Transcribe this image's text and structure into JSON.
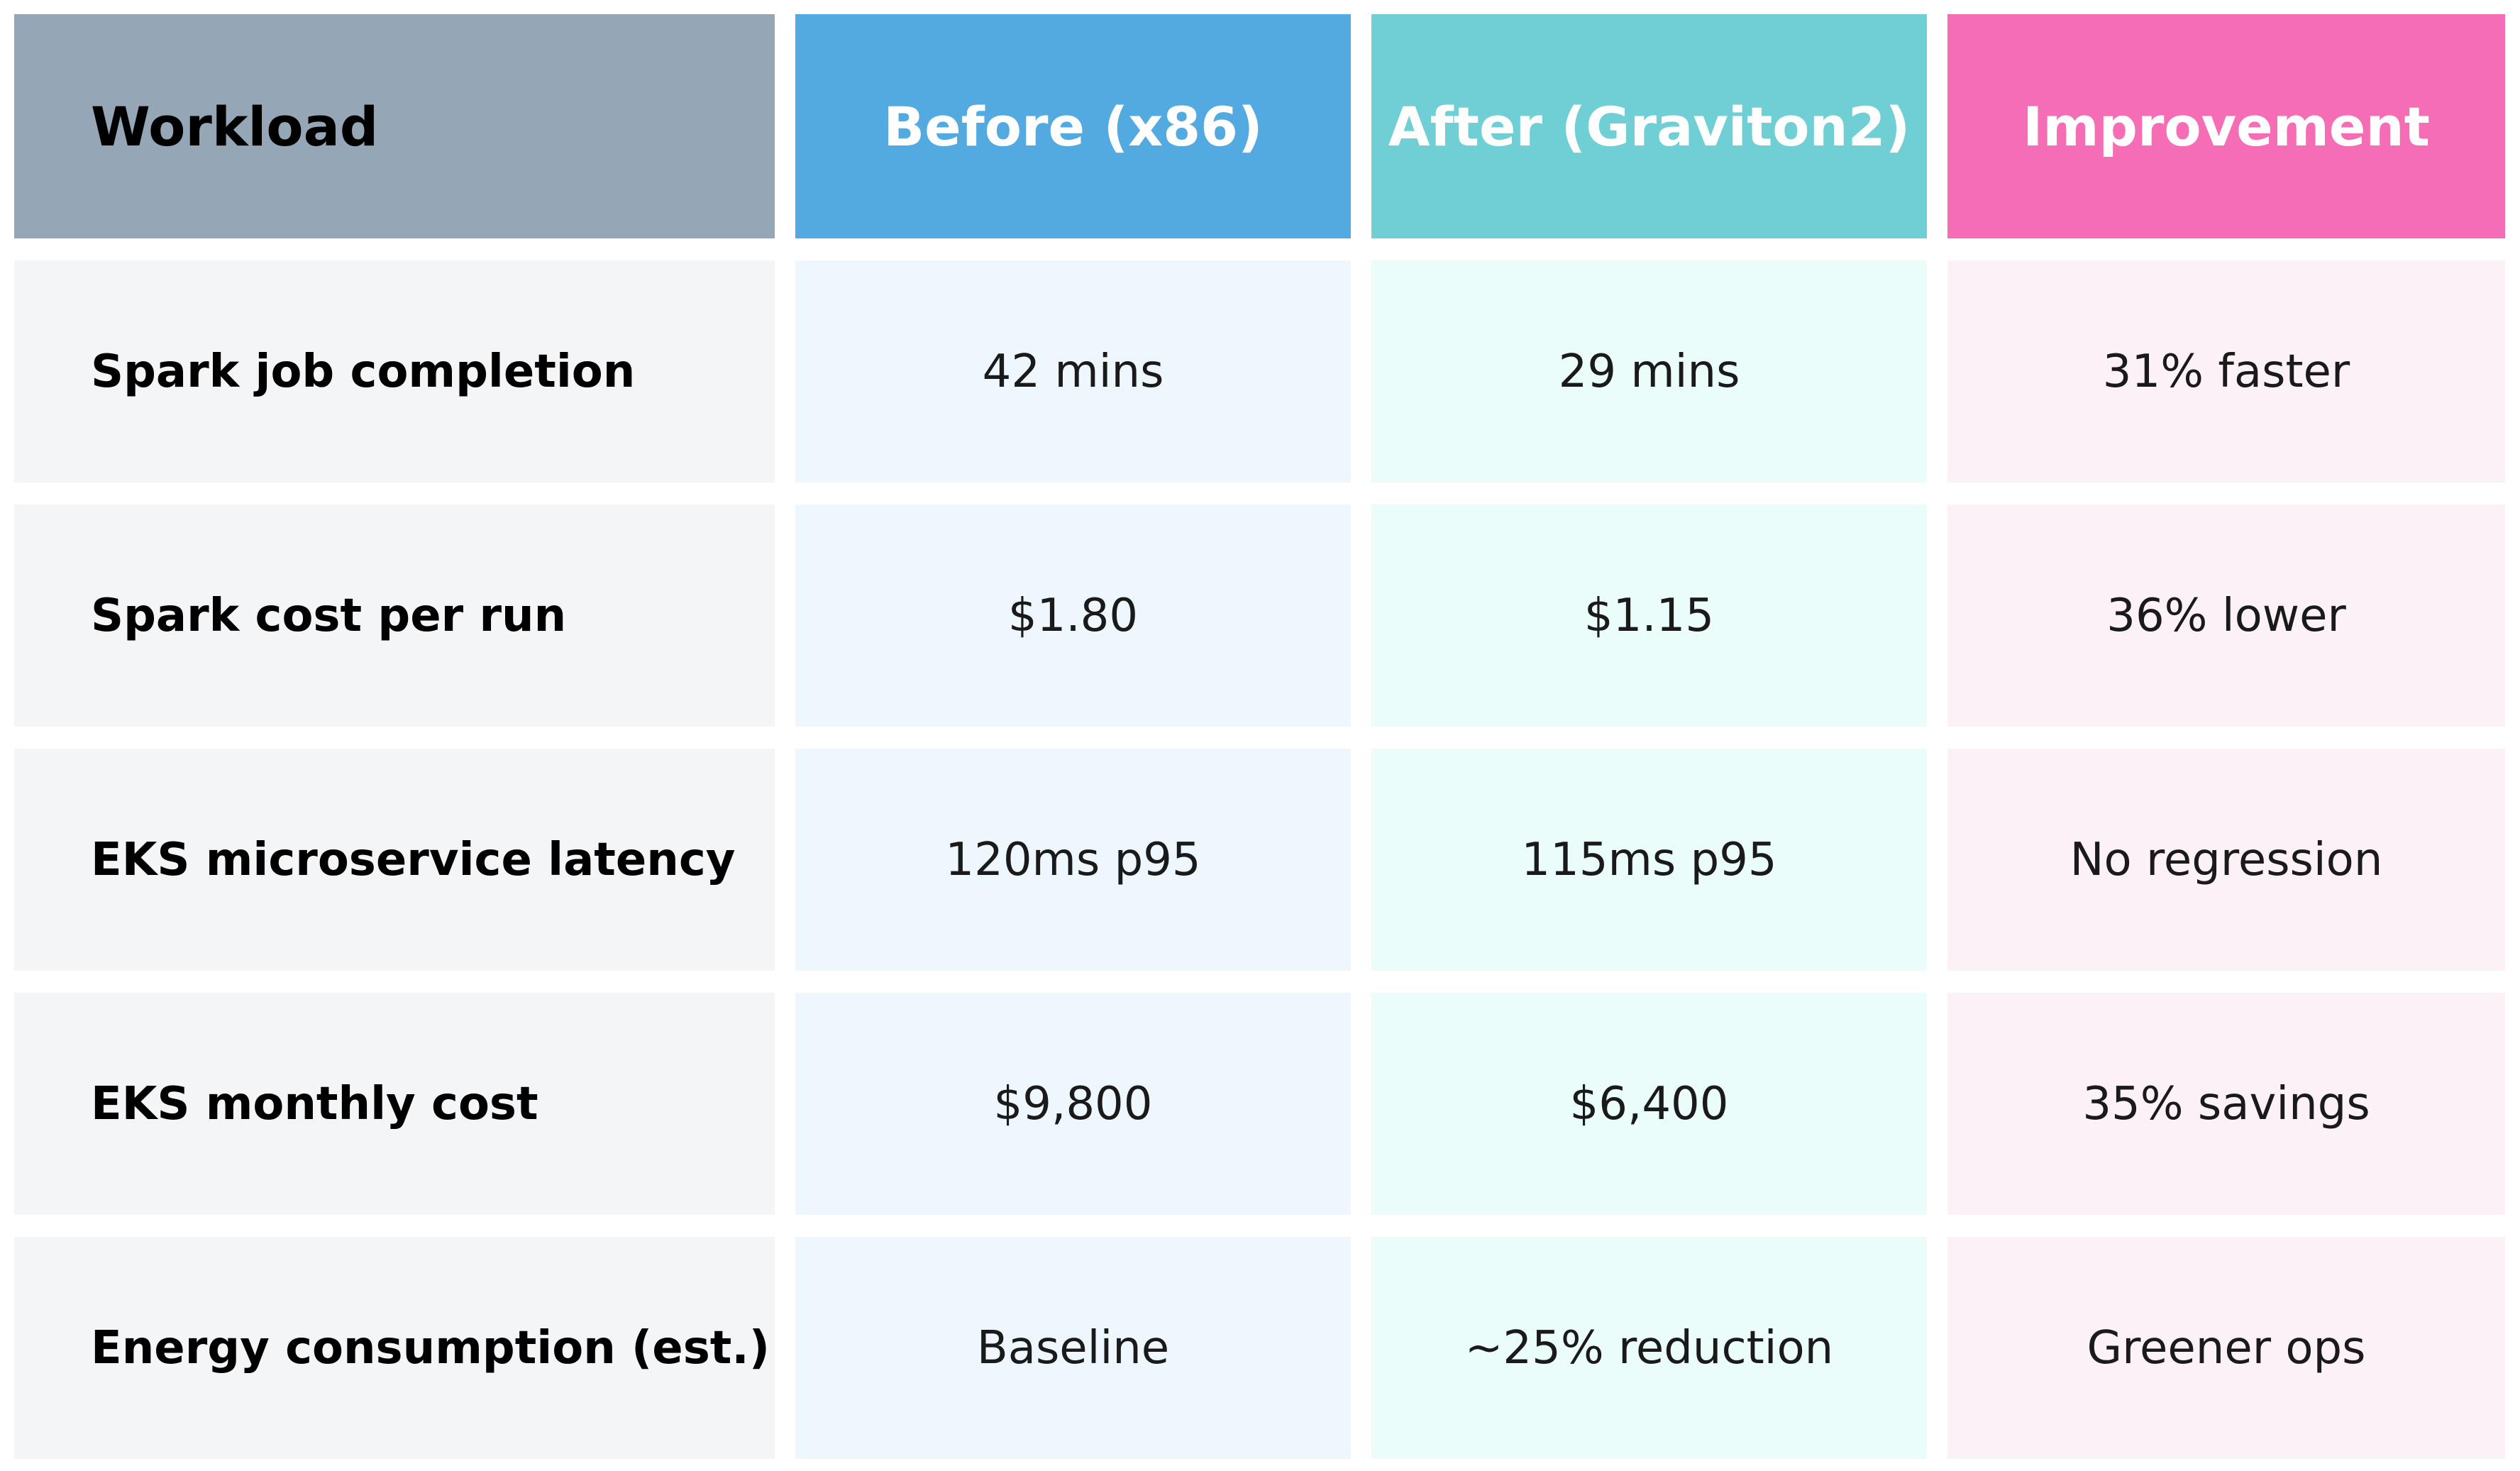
{
  "table": {
    "header": [
      "Workload",
      "Before (x86)",
      "After (Graviton2)",
      "Improvement"
    ],
    "rows": [
      [
        "Spark job completion",
        "42 mins",
        "29 mins",
        "31% faster"
      ],
      [
        "Spark cost per run",
        "$1.80",
        "$1.15",
        "36% lower"
      ],
      [
        "EKS microservice latency",
        "120ms p95",
        "115ms p95",
        "No regression"
      ],
      [
        "EKS monthly cost",
        "$9,800",
        "$6,400",
        "35% savings"
      ],
      [
        "Energy consumption (est.)",
        "Baseline",
        "~25% reduction",
        "Greener ops"
      ]
    ]
  }
}
